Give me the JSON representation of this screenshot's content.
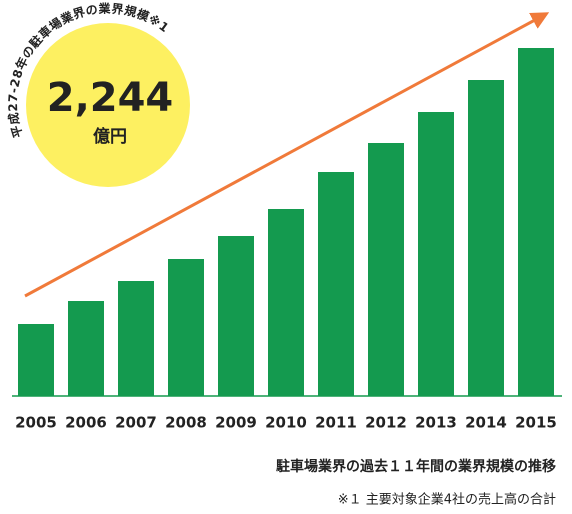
{
  "chart_data": {
    "type": "bar",
    "categories": [
      "2005",
      "2006",
      "2007",
      "2008",
      "2009",
      "2010",
      "2011",
      "2012",
      "2013",
      "2014",
      "2015"
    ],
    "values": [
      72,
      95,
      115,
      137,
      160,
      187,
      224,
      253,
      284,
      316,
      348
    ],
    "color": "#149a4f",
    "ylim": [
      0,
      360
    ],
    "badge": {
      "caption": "平成27-28年の駐車場業界の業界規模※1",
      "value": "2,244",
      "unit": "億円"
    },
    "caption": "駐車場業界の過去１１年間の業界規模の推移",
    "note": "※１ 主要対象企業4社の売上高の合計"
  }
}
